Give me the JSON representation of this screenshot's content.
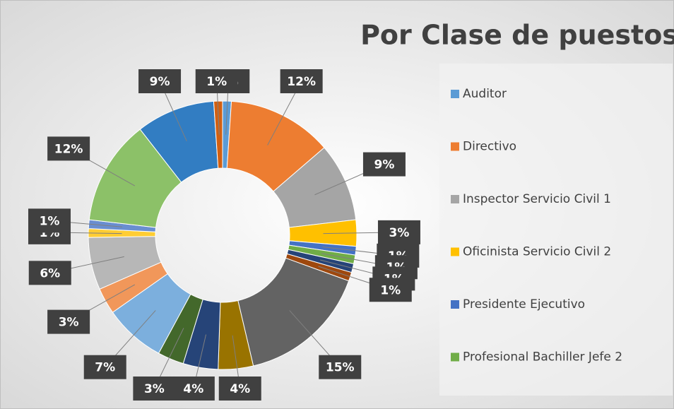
{
  "chart_data": {
    "type": "donut",
    "title": "Por Clase de puestos",
    "categories": [
      "Auditor",
      "Directivo",
      "Inspector Servicio Civil 1",
      "Oficinista Servicio Civil 2",
      "Presidente Ejecutivo",
      "Profesional Bachiller Jefe 2",
      null,
      null,
      null,
      null,
      null,
      null,
      null,
      null,
      null,
      null,
      null,
      null,
      null,
      null
    ],
    "values": [
      1,
      12,
      9,
      3,
      1,
      1,
      1,
      1,
      15,
      4,
      4,
      3,
      7,
      3,
      6,
      1,
      1,
      12,
      9,
      1
    ],
    "value_labels": [
      "1%",
      "12%",
      "9%",
      "3%",
      "1%",
      "1%",
      "1%",
      "1%",
      "15%",
      "4%",
      "4%",
      "3%",
      "7%",
      "3%",
      "6%",
      "1%",
      "1%",
      "12%",
      "9%",
      "1%"
    ],
    "colors": [
      "#5b9bd5",
      "#ed7d31",
      "#a5a5a5",
      "#ffc000",
      "#4472c4",
      "#70ad47",
      "#264478",
      "#9e480e",
      "#636363",
      "#997300",
      "#264478",
      "#43682b",
      "#7cafdd",
      "#f1975a",
      "#b7b7b7",
      "#ffcd33",
      "#698ed0",
      "#8cc168",
      "#327dc2",
      "#d26012"
    ]
  }
}
